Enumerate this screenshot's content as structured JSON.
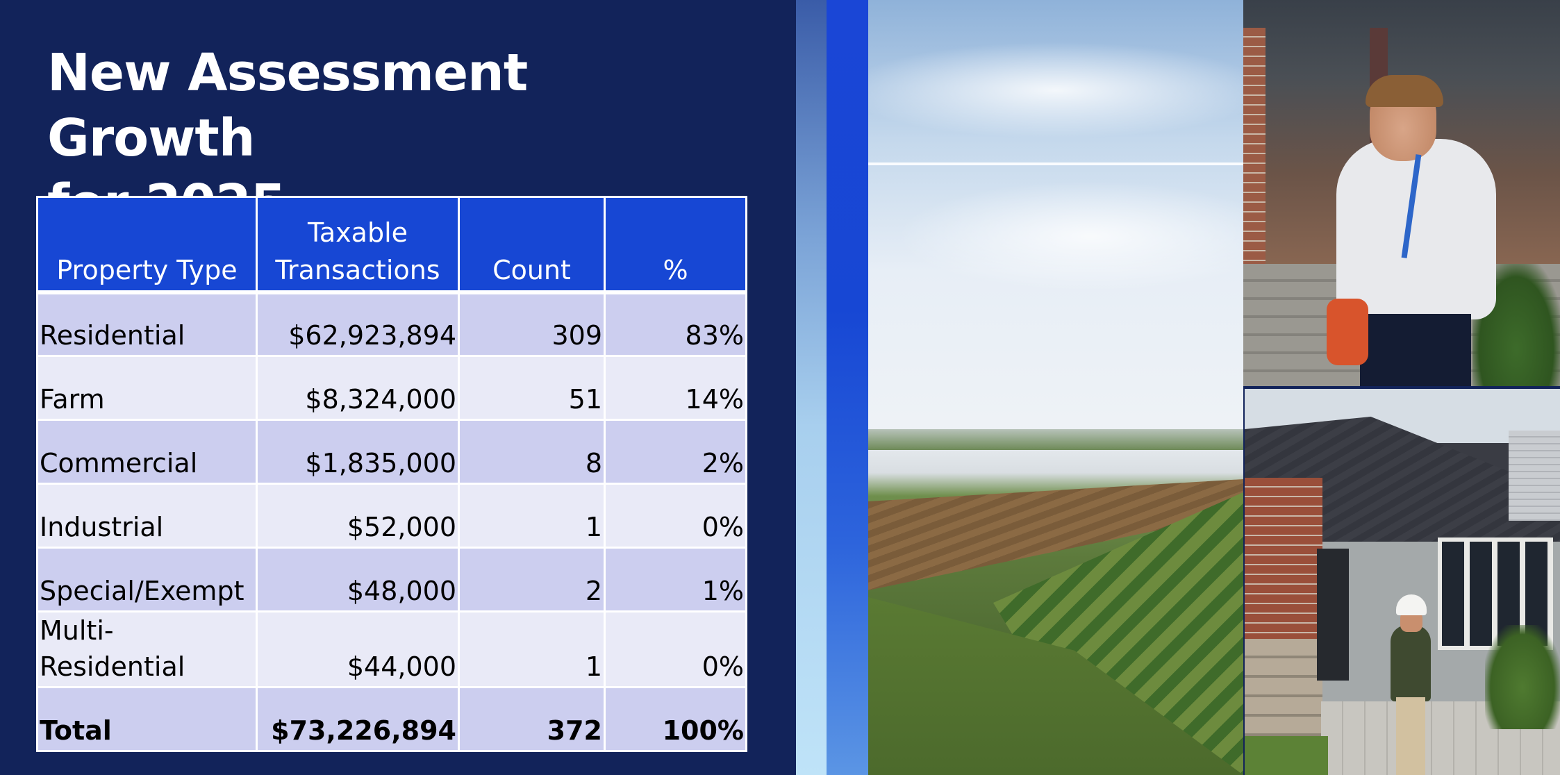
{
  "title": {
    "line1": "New Assessment Growth",
    "line2": "for 2025"
  },
  "table": {
    "headers": {
      "property_type": "Property Type",
      "taxable_line1": "Taxable",
      "taxable_line2": "Transactions",
      "count": "Count",
      "percent": "%"
    },
    "rows": [
      {
        "type": "Residential",
        "taxable": "$62,923,894",
        "count": "309",
        "percent": "83%"
      },
      {
        "type": "Farm",
        "taxable": "$8,324,000",
        "count": "51",
        "percent": "14%"
      },
      {
        "type": "Commercial",
        "taxable": "$1,835,000",
        "count": "8",
        "percent": "2%"
      },
      {
        "type": "Industrial",
        "taxable": "$52,000",
        "count": "1",
        "percent": "0%"
      },
      {
        "type": "Special/Exempt",
        "taxable": "$48,000",
        "count": "2",
        "percent": "1%"
      },
      {
        "type_line1": "Multi-",
        "type_line2": "Residential",
        "taxable": "$44,000",
        "count": "1",
        "percent": "0%"
      }
    ],
    "total": {
      "type": "Total",
      "taxable": "$73,226,894",
      "count": "372",
      "percent": "100%"
    }
  },
  "photos": [
    {
      "icon": "farm-landscape-photo"
    },
    {
      "icon": "assessor-on-porch-photo"
    },
    {
      "icon": "house-inspection-photo"
    }
  ],
  "colors": {
    "background": "#12235a",
    "header_fill": "#1747d4",
    "row_dark": "#ccceef",
    "row_light": "#e9eaf7"
  }
}
